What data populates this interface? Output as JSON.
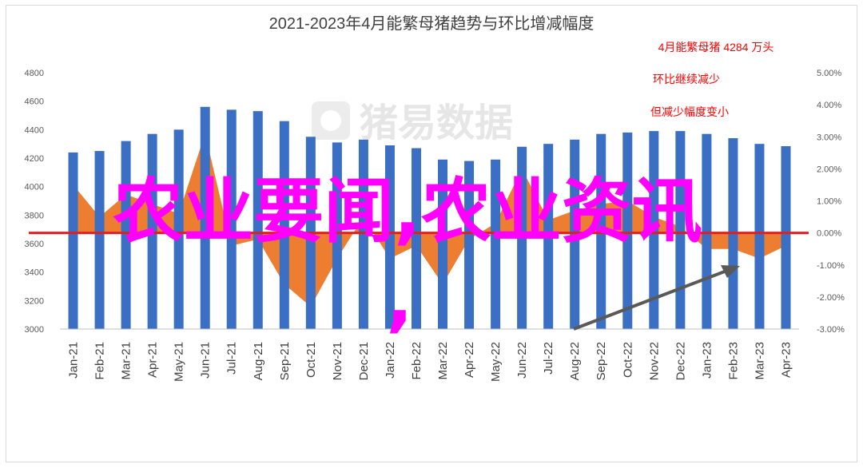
{
  "chart_data": {
    "type": "bar",
    "title": "2021-2023年4月能繁母猪趋势与环比增减幅度",
    "categories": [
      "Jan-21",
      "Feb-21",
      "Mar-21",
      "Apr-21",
      "May-21",
      "Jun-21",
      "Jul-21",
      "Aug-21",
      "Sep-21",
      "Oct-21",
      "Nov-21",
      "Dec-21",
      "Jan-22",
      "Feb-22",
      "Mar-22",
      "Apr-22",
      "May-22",
      "Jun-22",
      "Jul-22",
      "Aug-22",
      "Sep-22",
      "Oct-22",
      "Nov-22",
      "Dec-22",
      "Jan-23",
      "Feb-23",
      "Mar-23",
      "Apr-23"
    ],
    "series": [
      {
        "type": "bar",
        "axis": "left",
        "values": [
          4240,
          4250,
          4320,
          4370,
          4400,
          4560,
          4540,
          4530,
          4460,
          4350,
          4310,
          4330,
          4290,
          4270,
          4190,
          4180,
          4190,
          4280,
          4300,
          4330,
          4370,
          4380,
          4390,
          4390,
          4370,
          4340,
          4300,
          4284
        ]
      },
      {
        "type": "area",
        "axis": "right",
        "values": [
          1.5,
          0.5,
          1.2,
          0.9,
          0.6,
          3.1,
          -0.4,
          -0.2,
          -1.6,
          -2.3,
          -0.8,
          0.5,
          -0.8,
          -0.4,
          -1.6,
          -0.2,
          0.3,
          2.0,
          0.4,
          0.7,
          0.9,
          1.0,
          0.5,
          0.2,
          -0.5,
          -0.5,
          -0.8,
          -0.4
        ]
      }
    ],
    "y_left": {
      "min": 3000,
      "max": 4800,
      "ticks": [
        3000,
        3200,
        3400,
        3600,
        3800,
        4000,
        4200,
        4400,
        4600,
        4800
      ]
    },
    "y_right": {
      "min": -3,
      "max": 5,
      "ticks": [
        "-3.00%",
        "-2.00%",
        "-1.00%",
        "0.00%",
        "1.00%",
        "2.00%",
        "3.00%",
        "4.00%",
        "5.00%"
      ]
    },
    "zero_line_color": "#e02020",
    "bar_color": "#3a6fc4",
    "area_color": "#ed7d31",
    "annotations": [
      "4月能繁母猪 4284 万头",
      "环比继续减少",
      "但减少幅度变小"
    ],
    "arrow_color": "#595959",
    "grid": false,
    "legend": "none"
  },
  "watermark": "猪易数据",
  "overlay_text": "农业要闻,农业资讯",
  "overlay_comma": ","
}
